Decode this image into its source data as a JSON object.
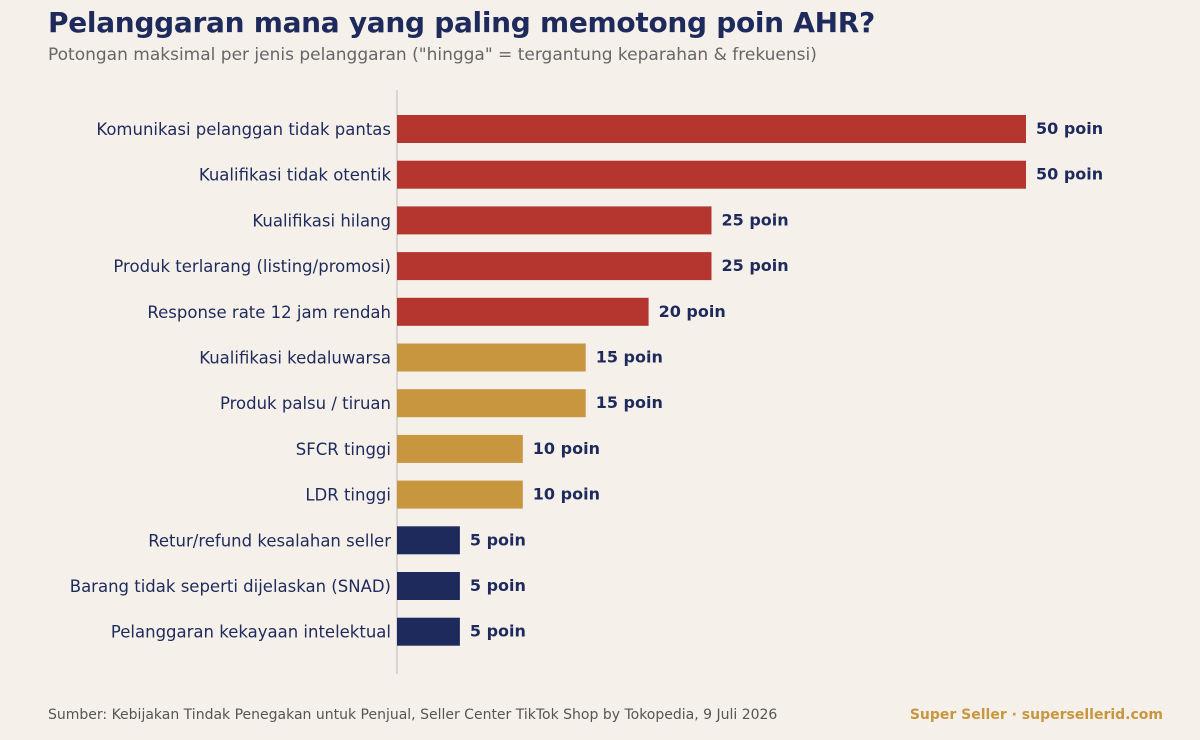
{
  "title": "Pelanggaran mana yang paling memotong poin AHR?",
  "subtitle": "Potongan maksimal per jenis pelanggaran (\"hingga\" = tergantung keparahan & frekuensi)",
  "footer": {
    "source": "Sumber: Kebijakan Tindak Penegakan untuk Penjual, Seller Center TikTok Shop by Tokopedia, 9 Juli 2026",
    "brand": "Super Seller · supersellerid.com"
  },
  "colors": {
    "red": "#b5352f",
    "gold": "#c8963e",
    "navy": "#1f2a5c",
    "label": "#1f2a5c",
    "axis": "#bbbbbb"
  },
  "chart_data": {
    "type": "bar",
    "orientation": "horizontal",
    "categories": [
      "Komunikasi pelanggan tidak pantas",
      "Kualifikasi tidak otentik",
      "Kualifikasi hilang",
      "Produk terlarang (listing/promosi)",
      "Response rate 12 jam rendah",
      "Kualifikasi kedaluwarsa",
      "Produk palsu / tiruan",
      "SFCR tinggi",
      "LDR tinggi",
      "Retur/refund kesalahan seller",
      "Barang tidak seperti dijelaskan (SNAD)",
      "Pelanggaran kekayaan intelektual"
    ],
    "values": [
      50,
      50,
      25,
      25,
      20,
      15,
      15,
      10,
      10,
      5,
      5,
      5
    ],
    "value_labels": [
      "50 poin",
      "50 poin",
      "25 poin",
      "25 poin",
      "20 poin",
      "15 poin",
      "15 poin",
      "10 poin",
      "10 poin",
      "5 poin",
      "5 poin",
      "5 poin"
    ],
    "bar_colors": [
      "red",
      "red",
      "red",
      "red",
      "red",
      "gold",
      "gold",
      "gold",
      "gold",
      "navy",
      "navy",
      "navy"
    ],
    "xlim": [
      0,
      50
    ],
    "grid": false,
    "legend": "none"
  }
}
